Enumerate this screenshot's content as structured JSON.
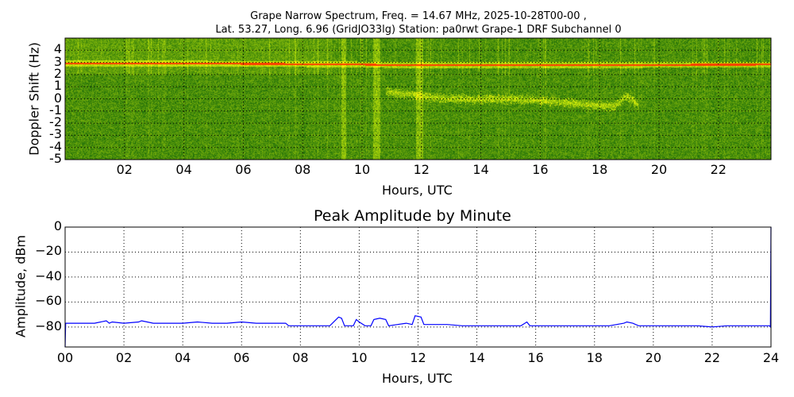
{
  "chart_data": [
    {
      "type": "heatmap",
      "title_line1": "Grape Narrow Spectrum, Freq. = 14.67 MHz, 2025-10-28T00-00 ,",
      "title_line2": "Lat.  53.27, Long.   6.96 (GridJO33lg) Station: pa0rwt Grape-1 DRF Subchannel 0",
      "xlabel": "Hours, UTC",
      "ylabel": "Doppler Shift (Hz)",
      "xlim": [
        0,
        23.77
      ],
      "ylim": [
        -5,
        5
      ],
      "xticks": [
        "02",
        "04",
        "06",
        "08",
        "10",
        "12",
        "14",
        "16",
        "18",
        "20",
        "22"
      ],
      "xtick_values": [
        2,
        4,
        6,
        8,
        10,
        12,
        14,
        16,
        18,
        20,
        22
      ],
      "yticks": [
        "4",
        "3",
        "2",
        "1",
        "0",
        "-1",
        "-2",
        "-3",
        "-4",
        "-5"
      ],
      "ytick_values": [
        4,
        3,
        2,
        1,
        0,
        -1,
        -2,
        -3,
        -4,
        -5
      ],
      "grid": true,
      "carrier_hz": [
        [
          0,
          2.95
        ],
        [
          8,
          2.9
        ],
        [
          12,
          2.8
        ],
        [
          23.77,
          2.85
        ]
      ],
      "bright_bands_hours": [
        [
          9.3,
          9.45
        ],
        [
          10.35,
          10.6
        ],
        [
          11.8,
          12.05
        ]
      ],
      "doppler_trace": [
        [
          10.8,
          0.6
        ],
        [
          11.2,
          0.5
        ],
        [
          11.8,
          0.3
        ],
        [
          12.5,
          0.1
        ],
        [
          13.5,
          0.0
        ],
        [
          15,
          0.0
        ],
        [
          16,
          -0.1
        ],
        [
          17,
          -0.3
        ],
        [
          17.8,
          -0.5
        ],
        [
          18.5,
          -0.6
        ],
        [
          18.9,
          0.3
        ],
        [
          19.3,
          -0.5
        ]
      ],
      "colors": {
        "background": "#2f8a10",
        "carrier": "#ff3000",
        "trace": "#d8e830"
      }
    },
    {
      "type": "line",
      "title": "Peak Amplitude by Minute",
      "xlabel": "Hours, UTC",
      "ylabel": "Amplitude, dBm",
      "xlim": [
        0,
        24
      ],
      "ylim": [
        -96,
        0
      ],
      "xticks": [
        "00",
        "02",
        "04",
        "06",
        "08",
        "10",
        "12",
        "14",
        "16",
        "18",
        "20",
        "22",
        "24"
      ],
      "xtick_values": [
        0,
        2,
        4,
        6,
        8,
        10,
        12,
        14,
        16,
        18,
        20,
        22,
        24
      ],
      "yticks": [
        "0",
        "−20",
        "−40",
        "−60",
        "−80"
      ],
      "ytick_values": [
        0,
        -20,
        -40,
        -60,
        -80
      ],
      "grid": true,
      "color": "#0000ff",
      "x": [
        0,
        0.02,
        0.5,
        1.0,
        1.4,
        1.5,
        1.6,
        2.0,
        2.5,
        2.6,
        3.0,
        3.5,
        4.0,
        4.5,
        5.0,
        5.5,
        6.0,
        6.5,
        7.0,
        7.5,
        7.6,
        8.0,
        8.5,
        9.0,
        9.3,
        9.4,
        9.5,
        9.6,
        9.8,
        9.9,
        10.0,
        10.2,
        10.4,
        10.5,
        10.7,
        10.9,
        11.0,
        11.3,
        11.6,
        11.8,
        11.9,
        12.1,
        12.2,
        12.5,
        13,
        13.5,
        14,
        14.5,
        15,
        15.5,
        15.7,
        15.8,
        16,
        16.5,
        17,
        17.5,
        18,
        18.5,
        19,
        19.1,
        19.3,
        19.5,
        20,
        20.5,
        21,
        21.5,
        22,
        22.5,
        23,
        23.5,
        23.95,
        23.98,
        24
      ],
      "y": [
        -96,
        -77,
        -77,
        -77,
        -75,
        -77,
        -76,
        -77,
        -76,
        -75,
        -77,
        -77,
        -77,
        -76,
        -77,
        -77,
        -76,
        -77,
        -77,
        -77,
        -79,
        -79,
        -79,
        -79,
        -72,
        -73,
        -79,
        -79,
        -79,
        -74,
        -76,
        -79,
        -79,
        -74,
        -73,
        -74,
        -79,
        -78,
        -77,
        -78,
        -71,
        -72,
        -78,
        -78,
        -78,
        -79,
        -79,
        -79,
        -79,
        -79,
        -76,
        -79,
        -79,
        -79,
        -79,
        -79,
        -79,
        -79,
        -77,
        -76,
        -77,
        -79,
        -79,
        -79,
        -79,
        -79,
        -80,
        -79,
        -79,
        -79,
        -79,
        -80,
        0
      ]
    }
  ]
}
